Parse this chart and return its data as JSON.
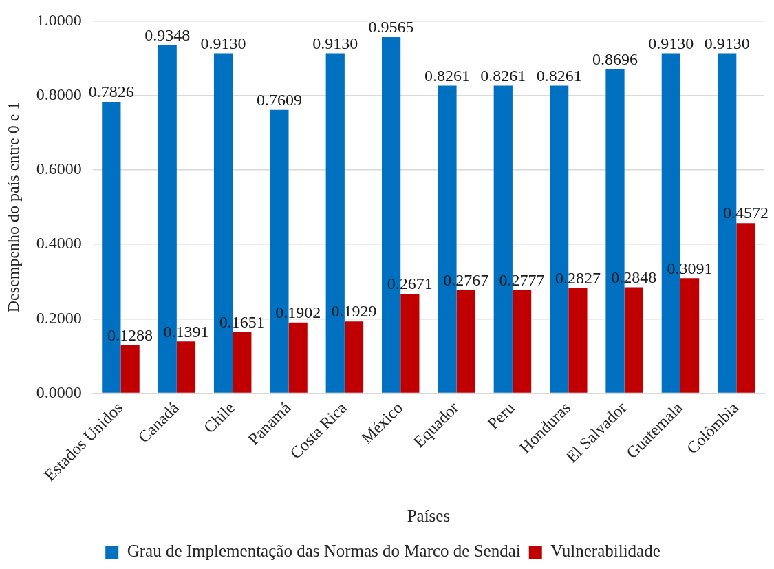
{
  "chart_data": {
    "type": "bar",
    "xlabel": "Países",
    "ylabel": "Desempenho do país entre 0 e 1",
    "categories": [
      "Estados Unidos",
      "Canadá",
      "Chile",
      "Panamá",
      "Costa Rica",
      "México",
      "Equador",
      "Peru",
      "Honduras",
      "El Salvador",
      "Guatemala",
      "Colômbia"
    ],
    "series": [
      {
        "name": "Grau de Implementação das Normas do Marco de Sendai",
        "color": "#0070c0",
        "values": [
          0.7826,
          0.9348,
          0.913,
          0.7609,
          0.913,
          0.9565,
          0.8261,
          0.8261,
          0.8261,
          0.8696,
          0.913,
          0.913
        ],
        "value_labels": [
          "0.7826",
          "0.9348",
          "0.9130",
          "0.7609",
          "0.9130",
          "0.9565",
          "0.8261",
          "0.8261",
          "0.8261",
          "0.8696",
          "0.9130",
          "0.9130"
        ]
      },
      {
        "name": "Vulnerabilidade",
        "color": "#c00000",
        "values": [
          0.1288,
          0.1391,
          0.1651,
          0.1902,
          0.1929,
          0.2671,
          0.2767,
          0.2777,
          0.2827,
          0.2848,
          0.3091,
          0.4572
        ],
        "value_labels": [
          "0.1288",
          "0.1391",
          "0.1651",
          "0.1902",
          "0.1929",
          "0.2671",
          "0.2767",
          "0.2777",
          "0.2827",
          "0.2848",
          "0.3091",
          "0.4572"
        ]
      }
    ],
    "ylim": [
      0,
      1
    ],
    "yticks": [
      {
        "value": 0,
        "label": "0.0000"
      },
      {
        "value": 0.2,
        "label": "0.2000"
      },
      {
        "value": 0.4,
        "label": "0.4000"
      },
      {
        "value": 0.6,
        "label": "0.6000"
      },
      {
        "value": 0.8,
        "label": "0.8000"
      },
      {
        "value": 1,
        "label": "1.0000"
      }
    ],
    "grid": "y",
    "legend": "bottom"
  }
}
